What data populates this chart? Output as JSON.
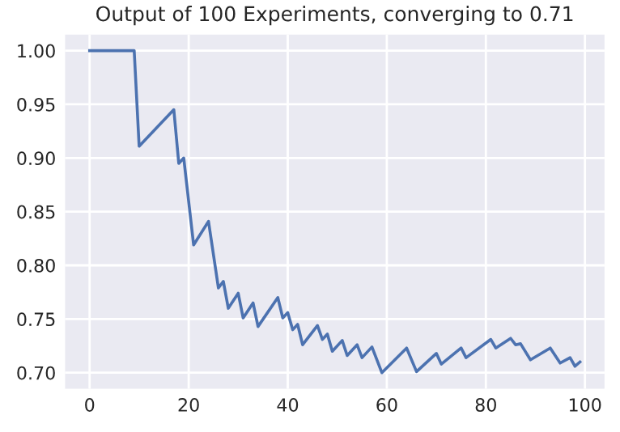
{
  "chart_data": {
    "type": "line",
    "title": "Output of 100 Experiments, converging to 0.71",
    "series": [
      {
        "color": "#4c72b0",
        "x": [
          0,
          9,
          10,
          17,
          18,
          19,
          21,
          24,
          26,
          27,
          28,
          30,
          31,
          33,
          34,
          38,
          39,
          40,
          41,
          42,
          43,
          46,
          47,
          48,
          49,
          51,
          52,
          54,
          55,
          57,
          59,
          64,
          66,
          70,
          71,
          75,
          76,
          81,
          82,
          85,
          86,
          87,
          89,
          93,
          95,
          97,
          98,
          99
        ],
        "values": [
          1.0,
          1.0,
          0.911,
          0.945,
          0.895,
          0.9,
          0.819,
          0.841,
          0.779,
          0.785,
          0.76,
          0.774,
          0.751,
          0.765,
          0.743,
          0.77,
          0.751,
          0.756,
          0.74,
          0.745,
          0.726,
          0.744,
          0.731,
          0.736,
          0.72,
          0.73,
          0.716,
          0.726,
          0.714,
          0.724,
          0.7,
          0.723,
          0.701,
          0.718,
          0.708,
          0.723,
          0.714,
          0.731,
          0.723,
          0.732,
          0.726,
          0.727,
          0.712,
          0.723,
          0.709,
          0.714,
          0.706,
          0.71
        ]
      }
    ],
    "xlim": [
      -4.95,
      103.95
    ],
    "xticks": [
      0,
      20,
      40,
      60,
      80,
      100
    ],
    "ylim": [
      0.685,
      1.015
    ],
    "yticks": [
      {
        "value": 0.7,
        "label": "0.70"
      },
      0.75,
      {
        "value": 0.8,
        "label": "0.80"
      },
      0.85,
      {
        "value": 0.9,
        "label": "0.90"
      },
      0.95,
      {
        "value": 1.0,
        "label": "1.00"
      }
    ],
    "grid": true,
    "line_style": "solid"
  }
}
